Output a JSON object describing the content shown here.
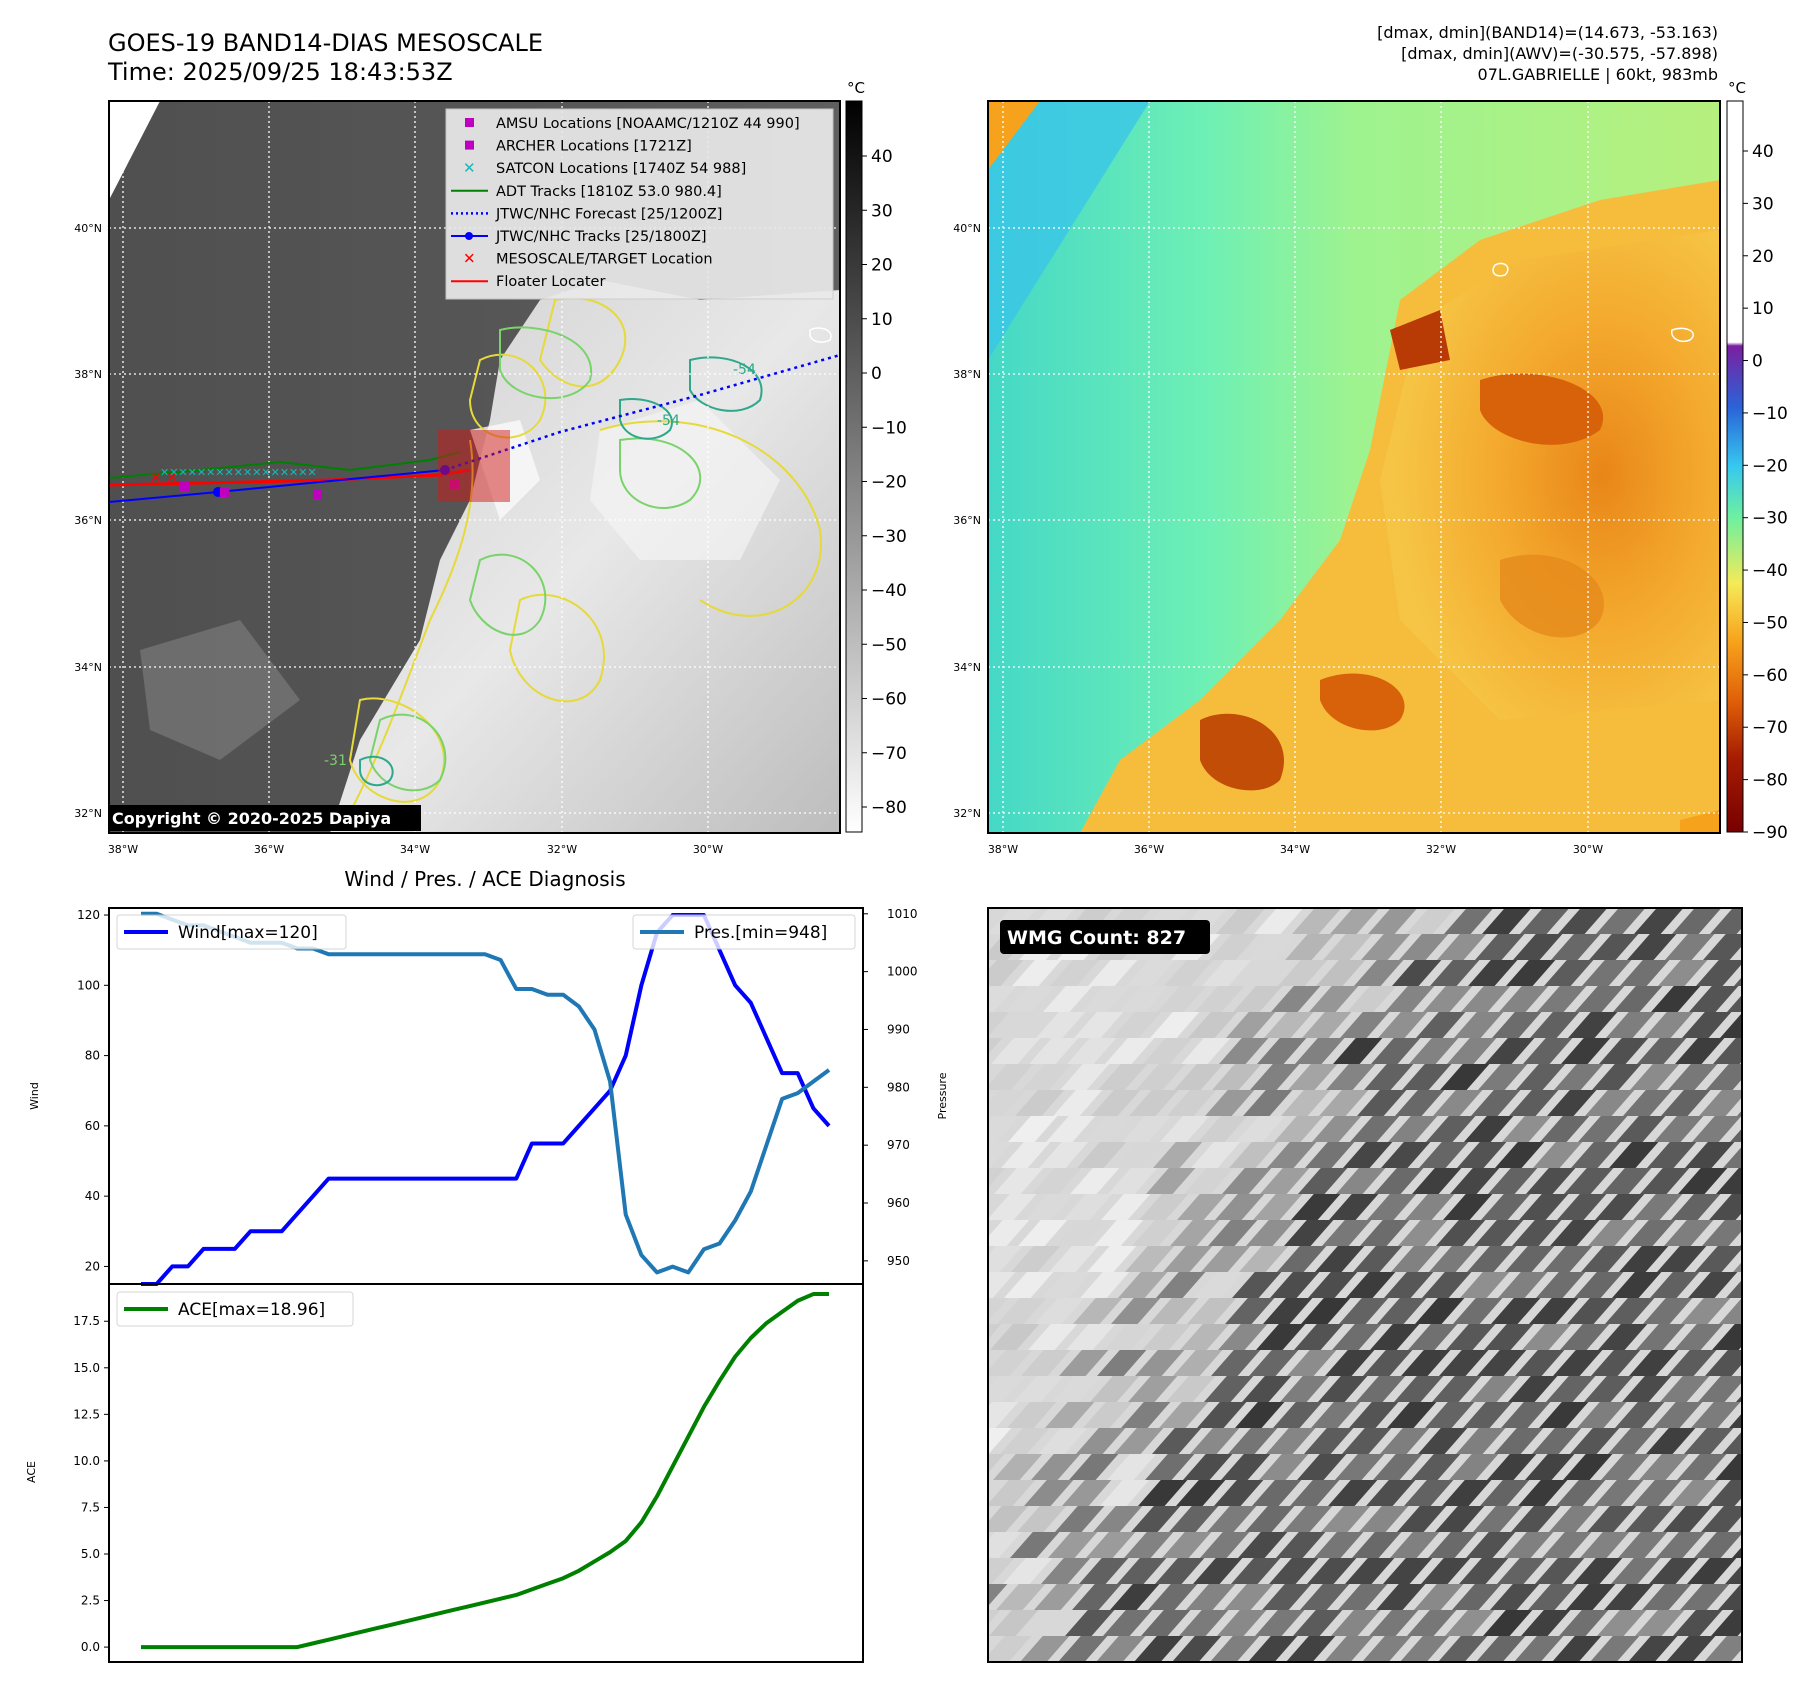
{
  "header": {
    "title_line1": "GOES-19 BAND14-DIAS MESOSCALE",
    "title_line2": "Time: 2025/09/25 18:43:53Z",
    "info_line1": "[dmax, dmin](BAND14)=(14.673, -53.163)",
    "info_line2": "[dmax, dmin](AWV)=(-30.575, -57.898)",
    "info_line3": "07L.GABRIELLE | 60kt, 983mb"
  },
  "map": {
    "lat_labels": [
      "40°N",
      "38°N",
      "36°N",
      "34°N",
      "32°N"
    ],
    "lon_labels": [
      "38°W",
      "36°W",
      "34°W",
      "32°W",
      "30°W"
    ],
    "contour_labels": [
      "-54",
      "-54",
      "-31"
    ],
    "copyright": "Copyright © 2020-2025 Dapiya",
    "colorbar1": {
      "unit": "°C",
      "ticks": [
        "40",
        "30",
        "20",
        "10",
        "0",
        "−10",
        "−20",
        "−30",
        "−40",
        "−50",
        "−60",
        "−70",
        "−80"
      ]
    },
    "colorbar2": {
      "unit": "°C",
      "ticks": [
        "40",
        "30",
        "20",
        "10",
        "0",
        "−10",
        "−20",
        "−30",
        "−40",
        "−50",
        "−60",
        "−70",
        "−80",
        "−90"
      ]
    },
    "legend": [
      {
        "label": "AMSU Locations [NOAAMC/1210Z 44 990]",
        "marker": "square",
        "color": "#c000c0"
      },
      {
        "label": "ARCHER Locations [1721Z]",
        "marker": "square",
        "color": "#c000c0"
      },
      {
        "label": "SATCON Locations [1740Z 54 988]",
        "marker": "x",
        "color": "#17b8b8"
      },
      {
        "label": "ADT Tracks [1810Z 53.0 980.4]",
        "marker": "line",
        "color": "#008000"
      },
      {
        "label": "JTWC/NHC Forecast [25/1200Z]",
        "marker": "dotted",
        "color": "#0000ff"
      },
      {
        "label": "JTWC/NHC Tracks [25/1800Z]",
        "marker": "line-dot",
        "color": "#0000ff"
      },
      {
        "label": "MESOSCALE/TARGET Location",
        "marker": "x",
        "color": "#ff0000"
      },
      {
        "label": "Floater Locater",
        "marker": "line",
        "color": "#ff0000"
      }
    ]
  },
  "wmg": {
    "label": "WMG Count: 827"
  },
  "chart_data": [
    {
      "type": "line",
      "title": "Wind / Pres. / ACE Diagnosis",
      "ylabel": "Wind",
      "y2label": "Pressure",
      "ylim": [
        15,
        122
      ],
      "y2lim": [
        946,
        1011
      ],
      "yticks": [
        20,
        40,
        60,
        80,
        100,
        120
      ],
      "y2ticks": [
        950,
        960,
        970,
        980,
        990,
        1000,
        1010
      ],
      "series": [
        {
          "name": "Wind[max=120]",
          "color": "#0000ff",
          "axis": "left",
          "values": [
            15,
            15,
            20,
            20,
            25,
            25,
            25,
            30,
            30,
            30,
            35,
            40,
            45,
            45,
            45,
            45,
            45,
            45,
            45,
            45,
            45,
            45,
            45,
            45,
            45,
            55,
            55,
            55,
            60,
            65,
            70,
            80,
            100,
            115,
            120,
            120,
            120,
            110,
            100,
            95,
            85,
            75,
            75,
            65,
            60
          ]
        },
        {
          "name": "Pres.[min=948]",
          "color": "#1f77b4",
          "axis": "right",
          "values": [
            1010,
            1010,
            1009,
            1008,
            1008,
            1007,
            1006,
            1005,
            1005,
            1005,
            1004,
            1004,
            1003,
            1003,
            1003,
            1003,
            1003,
            1003,
            1003,
            1003,
            1003,
            1003,
            1003,
            1002,
            997,
            997,
            996,
            996,
            994,
            990,
            981,
            958,
            951,
            948,
            949,
            948,
            952,
            953,
            957,
            962,
            970,
            978,
            979,
            981,
            983
          ]
        }
      ]
    },
    {
      "type": "line",
      "ylabel": "ACE",
      "ylim": [
        -0.8,
        19.5
      ],
      "yticks": [
        0.0,
        2.5,
        5.0,
        7.5,
        10.0,
        12.5,
        15.0,
        17.5
      ],
      "series": [
        {
          "name": "ACE[max=18.96]",
          "color": "#008000",
          "values": [
            0,
            0,
            0,
            0,
            0,
            0,
            0,
            0,
            0,
            0,
            0,
            0.2,
            0.4,
            0.6,
            0.8,
            1.0,
            1.2,
            1.4,
            1.6,
            1.8,
            2.0,
            2.2,
            2.4,
            2.6,
            2.8,
            3.1,
            3.4,
            3.7,
            4.1,
            4.6,
            5.1,
            5.7,
            6.7,
            8.1,
            9.7,
            11.3,
            12.9,
            14.3,
            15.6,
            16.6,
            17.4,
            18.0,
            18.6,
            18.96,
            18.96
          ]
        }
      ]
    }
  ]
}
